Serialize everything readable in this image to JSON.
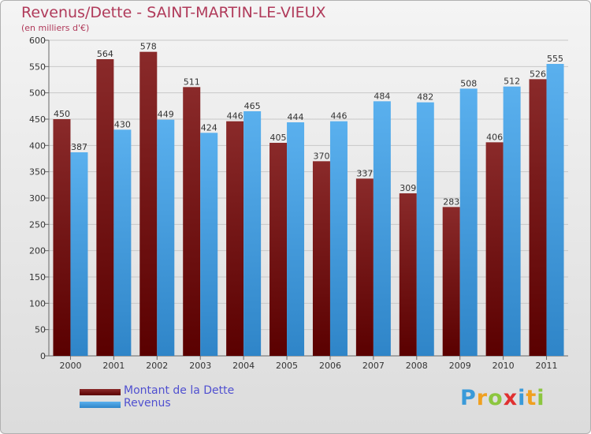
{
  "header": {
    "title": "Revenus/Dette - SAINT-MARTIN-LE-VIEUX",
    "subtitle": "(en milliers d'€)"
  },
  "logo": {
    "text": "Proxiti",
    "letters": [
      {
        "ch": "P",
        "color": "#3a9ad9"
      },
      {
        "ch": "r",
        "color": "#f0a020"
      },
      {
        "ch": "o",
        "color": "#8cc63f"
      },
      {
        "ch": "x",
        "color": "#e03030"
      },
      {
        "ch": "i",
        "color": "#3a9ad9"
      },
      {
        "ch": "t",
        "color": "#f0a020"
      },
      {
        "ch": "i",
        "color": "#8cc63f"
      }
    ]
  },
  "chart_data": {
    "type": "bar",
    "categories": [
      "2000",
      "2001",
      "2002",
      "2003",
      "2004",
      "2005",
      "2006",
      "2007",
      "2008",
      "2009",
      "2010",
      "2011"
    ],
    "series": [
      {
        "name": "Montant de la Dette",
        "color": "#7a1c1c",
        "values": [
          450,
          564,
          578,
          511,
          446,
          405,
          370,
          337,
          309,
          283,
          406,
          526
        ],
        "labels": [
          "450",
          "564",
          "578",
          "511",
          "446",
          "405",
          "370",
          "337",
          "309",
          "283",
          "406",
          "526"
        ]
      },
      {
        "name": "Revenus",
        "color": "#4da6e8",
        "values": [
          387,
          430,
          449,
          424,
          465,
          444,
          446,
          484,
          482,
          508,
          512,
          555
        ],
        "labels": [
          "387",
          "430",
          "449",
          "424",
          "465",
          "444",
          "446",
          "484",
          "482",
          "508",
          "512",
          "555"
        ]
      }
    ],
    "title": "Revenus/Dette - SAINT-MARTIN-LE-VIEUX",
    "xlabel": "",
    "ylabel": "",
    "ylim": [
      0,
      600
    ],
    "yticks": [
      0,
      50,
      100,
      150,
      200,
      250,
      300,
      350,
      400,
      450,
      500,
      550,
      600
    ],
    "ytick_labels": [
      "0",
      "50",
      "100",
      "150",
      "200",
      "250",
      "300",
      "350",
      "400",
      "450",
      "500",
      "550",
      "600"
    ],
    "grid": true,
    "legend": "bottom-left"
  }
}
